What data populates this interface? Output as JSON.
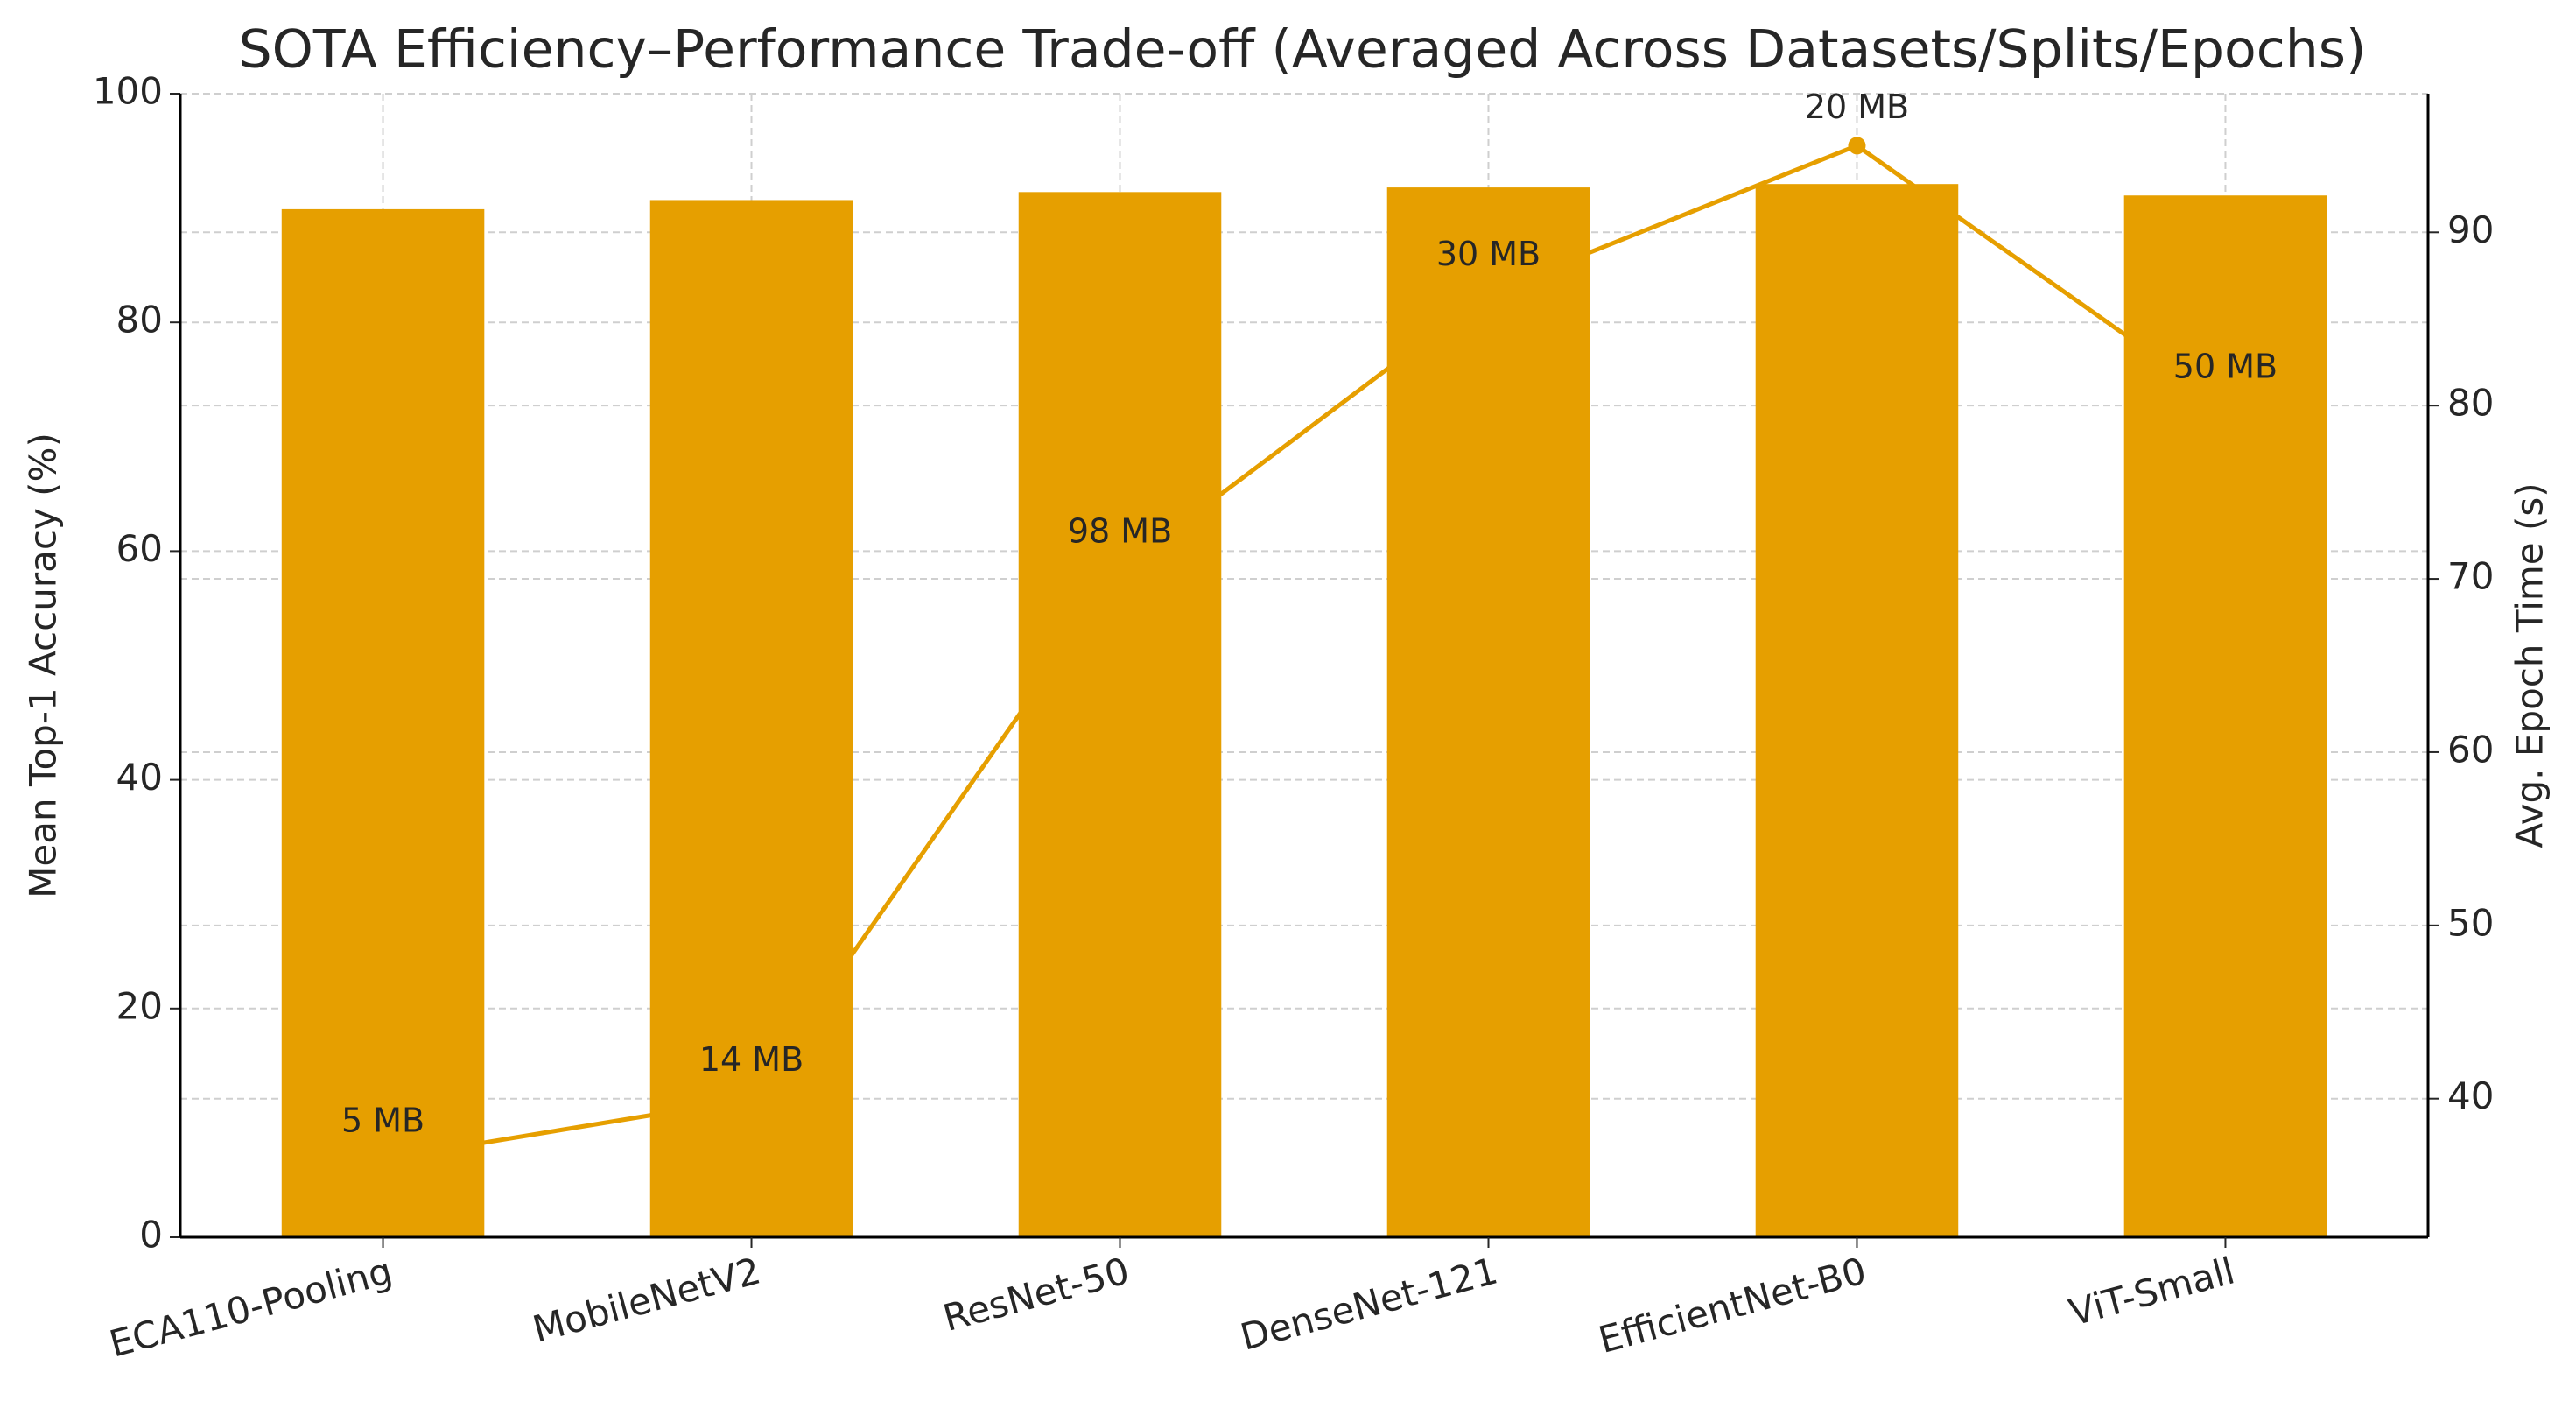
{
  "chart_data": {
    "type": "bar_line",
    "title": "SOTA Efficiency–Performance Trade-off (Averaged Across Datasets/Splits/Epochs)",
    "ylabel": "Mean Top-1 Accuracy (%)",
    "y2label": "Avg. Epoch Time (s)",
    "categories": [
      "ECA110-Pooling",
      "MobileNetV2",
      "ResNet-50",
      "DenseNet-121",
      "EfficientNet-B0",
      "ViT-Small"
    ],
    "series": [
      {
        "type": "bar",
        "color": "#e69f00",
        "values": [
          89.9,
          90.7,
          91.4,
          91.8,
          92.1,
          91.1
        ]
      },
      {
        "type": "line",
        "color": "#e69f00",
        "axis": "y2",
        "values": [
          36.5,
          40.0,
          70.5,
          86.5,
          95.0,
          80.0
        ],
        "point_labels": [
          "5 MB",
          "14 MB",
          "98 MB",
          "30 MB",
          "20 MB",
          "50 MB"
        ]
      }
    ],
    "ylim": [
      0,
      100
    ],
    "yticks": [
      0,
      20,
      40,
      60,
      80,
      100
    ],
    "y2lim": [
      32,
      98
    ],
    "y2ticks": [
      40,
      50,
      60,
      70,
      80,
      90
    ],
    "grid": true
  }
}
